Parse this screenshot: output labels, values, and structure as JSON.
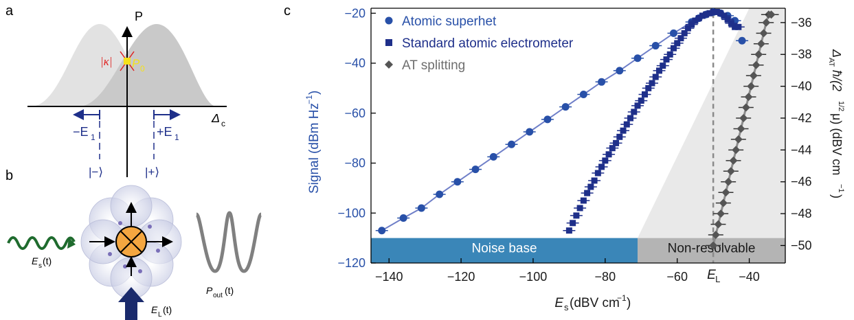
{
  "colors": {
    "superhet": "#2850a8",
    "standard": "#1e2f8a",
    "at": "#555555",
    "noise": "#3a86b8",
    "nonres": "#b4b4b4",
    "fit": "#6f7fc8"
  },
  "panel_a": {
    "letter": "a",
    "p_axis": "P",
    "kappa": "|κ|",
    "p0": "P",
    "p0_sub": "0",
    "delta_c": "Δ",
    "delta_sub": "c",
    "minus_e1": "−E",
    "plus_e1": "+E",
    "e1_sub": "1",
    "ket_minus": "|−⟩",
    "ket_plus": "|+⟩"
  },
  "panel_b": {
    "letter": "b",
    "es_label": "E",
    "es_sub": "s",
    "es_arg": "(t)",
    "el_label": "E",
    "el_sub": "L",
    "el_arg": "(t)",
    "pout_label": "P",
    "pout_sub": "out",
    "pout_arg": "(t)"
  },
  "panel_c": {
    "letter": "c",
    "noise_label": "Noise base",
    "nonres_label": "Non-resolvable",
    "el_marker": "E",
    "el_marker_sub": "L",
    "xlabel_main": "E",
    "xlabel_sub": "s",
    "xlabel_unit": " (dBV cm",
    "xlabel_exp": "−1",
    "xlabel_close": ")",
    "ylabel_left": "Signal (dBm Hz",
    "ylabel_left_exp": "−1",
    "ylabel_left_close": ")",
    "ylabel_right": "Δ",
    "ylabel_right_sub": "AT",
    "ylabel_right_mid": "ħ/(2",
    "ylabel_right_exp": "1/2",
    "ylabel_right_end": "μ) (dBV cm",
    "ylabel_right_exp2": "−1",
    "ylabel_right_close": ")"
  },
  "chart_data": {
    "type": "scatter",
    "xlim": [
      -145,
      -30
    ],
    "ylim": [
      -120,
      -18
    ],
    "y2lim": [
      -51.1,
      -35.1
    ],
    "x_ticks": [
      -140,
      -120,
      -100,
      -80,
      -60,
      -40
    ],
    "y_ticks": [
      -120,
      -100,
      -80,
      -60,
      -40,
      -20
    ],
    "y2_ticks": [
      -50,
      -48,
      -46,
      -44,
      -42,
      -40,
      -38,
      -36
    ],
    "noise_floor": -110,
    "nonresolvable_start": -71,
    "EL": -50,
    "legend_position": "top-left",
    "series": [
      {
        "name": "Atomic superhet",
        "axis": "left",
        "x": [
          -142,
          -136,
          -131,
          -126,
          -121,
          -116,
          -111,
          -106,
          -101,
          -96,
          -91,
          -86,
          -81,
          -76,
          -71,
          -66,
          -61,
          -56,
          -54,
          -52,
          -50,
          -48,
          -46,
          -44,
          -42
        ],
        "y": [
          -107,
          -102,
          -98,
          -92.5,
          -87.5,
          -82.5,
          -77.5,
          -72.5,
          -67.5,
          -62.5,
          -57.5,
          -52.5,
          -47.5,
          -43,
          -38,
          -33,
          -28,
          -23.5,
          -22,
          -20.5,
          -19.5,
          -20,
          -21,
          -23,
          -31
        ]
      },
      {
        "name": "Standard atomic electrometer",
        "axis": "left",
        "x": [
          -90,
          -89,
          -88,
          -87,
          -86,
          -85,
          -84,
          -83,
          -82,
          -81,
          -80,
          -79,
          -78,
          -77,
          -76,
          -75,
          -74,
          -73,
          -72,
          -71,
          -70,
          -69,
          -68,
          -67,
          -66,
          -65,
          -64,
          -63,
          -62,
          -61,
          -60,
          -59,
          -58,
          -57,
          -56,
          -55,
          -54,
          -53,
          -52,
          -51,
          -50,
          -49,
          -48,
          -47,
          -46,
          -45,
          -44,
          -43
        ],
        "y": [
          -107,
          -104,
          -101,
          -98,
          -95,
          -92,
          -89.5,
          -87,
          -84,
          -81.5,
          -79,
          -76.5,
          -74,
          -72,
          -69.5,
          -67,
          -64.5,
          -62,
          -59.5,
          -57,
          -55,
          -52.5,
          -50,
          -48,
          -45.5,
          -43,
          -41,
          -38.5,
          -36.5,
          -34,
          -32,
          -30,
          -28,
          -26,
          -24.5,
          -23,
          -22,
          -21,
          -20.5,
          -20,
          -19.5,
          -19.5,
          -20,
          -21,
          -22.5,
          -24,
          -25.5,
          -25.5
        ]
      },
      {
        "name": "AT splitting",
        "axis": "right",
        "x": [
          -50,
          -49.3,
          -48.6,
          -47.9,
          -47.2,
          -46.5,
          -45.8,
          -45.1,
          -44.4,
          -43.7,
          -43,
          -42.3,
          -41.6,
          -40.9,
          -40.2,
          -39.5,
          -38.8,
          -38.1,
          -37.4,
          -36.7,
          -36,
          -35.3,
          -34.6,
          -33.9
        ],
        "y": [
          -50,
          -49.33,
          -48.67,
          -48,
          -47.33,
          -46.67,
          -46,
          -45.33,
          -44.67,
          -44,
          -43.33,
          -42.67,
          -42,
          -41.33,
          -40.67,
          -40,
          -39.33,
          -38.67,
          -38,
          -37.33,
          -36.67,
          -36,
          -35.5,
          -35.5
        ]
      }
    ]
  }
}
